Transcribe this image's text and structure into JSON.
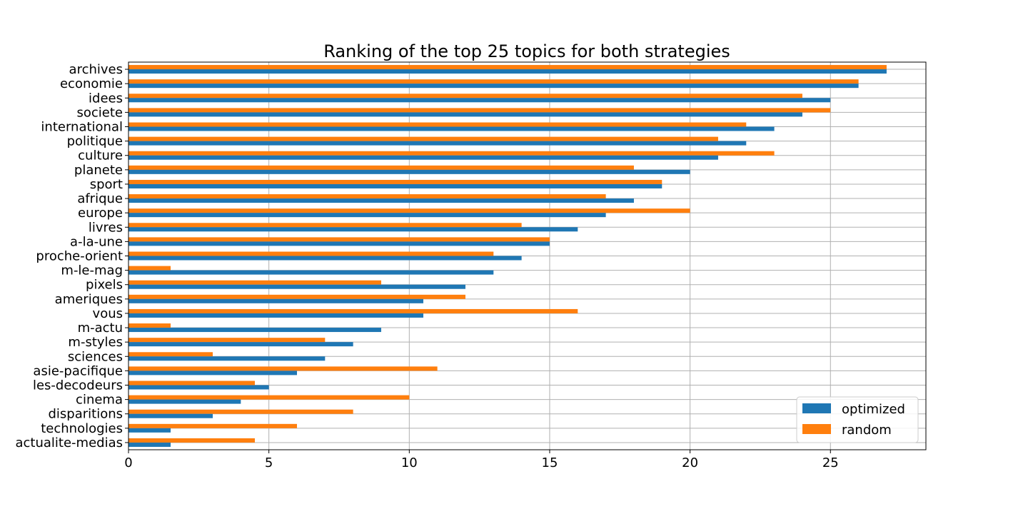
{
  "chart_data": {
    "type": "bar",
    "orientation": "horizontal",
    "title": "Ranking of the top 25 topics for both strategies",
    "xlabel": "",
    "ylabel": "",
    "xlim": [
      0,
      28.4
    ],
    "xticks": [
      0,
      5,
      10,
      15,
      20,
      25
    ],
    "grid": true,
    "legend_position": "lower-right",
    "categories": [
      "archives",
      "economie",
      "idees",
      "societe",
      "international",
      "politique",
      "culture",
      "planete",
      "sport",
      "afrique",
      "europe",
      "livres",
      "a-la-une",
      "proche-orient",
      "m-le-mag",
      "pixels",
      "ameriques",
      "vous",
      "m-actu",
      "m-styles",
      "sciences",
      "asie-pacifique",
      "les-decodeurs",
      "cinema",
      "disparitions",
      "technologies",
      "actualite-medias"
    ],
    "series": [
      {
        "name": "optimized",
        "color": "#1f77b4",
        "values": [
          27,
          26,
          25,
          24,
          23,
          22,
          21,
          20,
          19,
          18,
          17,
          16,
          15,
          14,
          13,
          12,
          10.5,
          10.5,
          9,
          8,
          7,
          6,
          5,
          4,
          3,
          1.5,
          1.5
        ]
      },
      {
        "name": "random",
        "color": "#ff7f0e",
        "values": [
          27,
          26,
          24,
          25,
          22,
          21,
          23,
          18,
          19,
          17,
          20,
          14,
          15,
          13,
          1.5,
          9,
          12,
          16,
          1.5,
          7,
          3,
          11,
          4.5,
          10,
          8,
          6,
          4.5
        ]
      }
    ]
  }
}
